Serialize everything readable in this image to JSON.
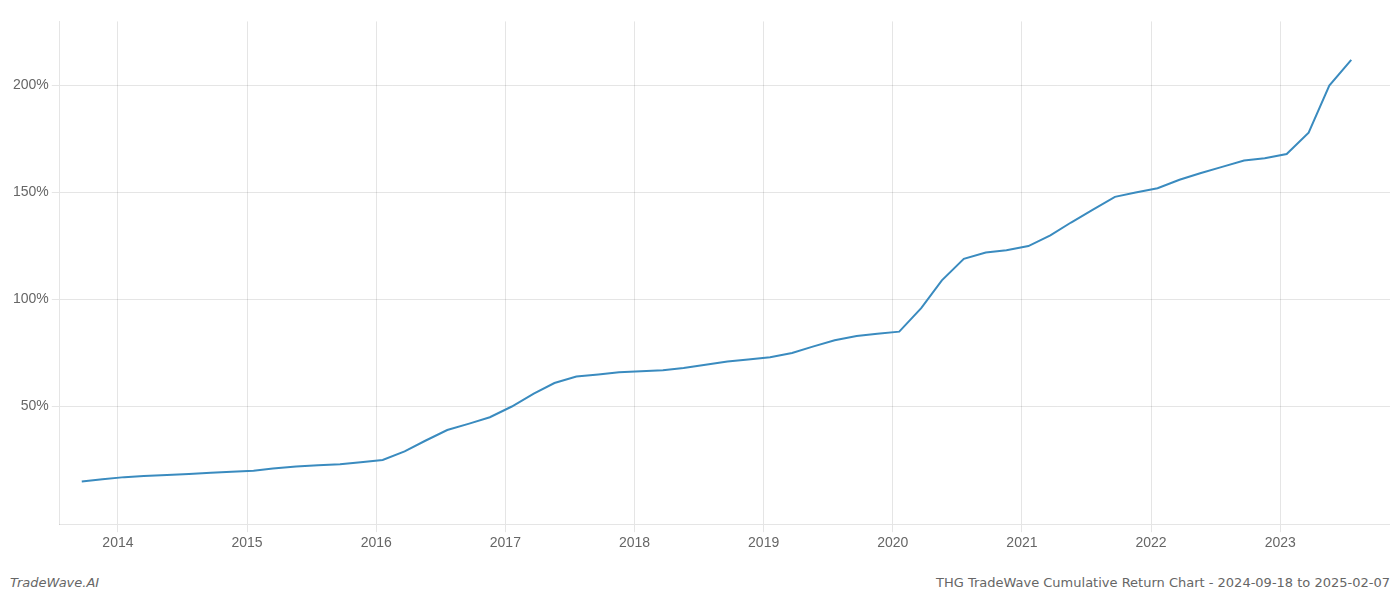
{
  "chart_data": {
    "type": "line",
    "title": "THG TradeWave Cumulative Return Chart - 2024-09-18 to 2025-02-07",
    "annotations": [
      "TradeWave.AI"
    ],
    "x": [
      2013.72,
      2013.88,
      2014.05,
      2014.2,
      2014.38,
      2014.55,
      2014.72,
      2014.88,
      2015.05,
      2015.2,
      2015.38,
      2015.55,
      2015.72,
      2015.88,
      2016.05,
      2016.22,
      2016.38,
      2016.55,
      2016.72,
      2016.88,
      2017.05,
      2017.22,
      2017.38,
      2017.55,
      2017.72,
      2017.88,
      2018.05,
      2018.22,
      2018.38,
      2018.55,
      2018.72,
      2018.88,
      2019.05,
      2019.22,
      2019.38,
      2019.55,
      2019.72,
      2019.88,
      2020.05,
      2020.22,
      2020.38,
      2020.55,
      2020.72,
      2020.88,
      2021.05,
      2021.22,
      2021.38,
      2021.55,
      2021.72,
      2021.88,
      2022.05,
      2022.22,
      2022.38,
      2022.55,
      2022.72,
      2022.88,
      2023.05,
      2023.22,
      2023.38,
      2023.55
    ],
    "values": [
      15,
      16,
      17,
      17.5,
      18,
      18.5,
      19,
      19.5,
      20,
      21,
      22,
      22.5,
      23,
      24,
      25,
      29,
      34,
      39,
      42,
      45,
      50,
      56,
      61,
      64,
      65,
      66,
      66.5,
      67,
      68,
      69.5,
      71,
      72,
      73,
      75,
      78,
      81,
      83,
      84,
      85,
      96,
      109,
      119,
      122,
      123,
      125,
      130,
      136,
      142,
      148,
      150,
      152,
      156,
      159,
      162,
      165,
      166,
      168,
      178,
      200,
      212
    ],
    "color": "#3a8bbf",
    "xlim": [
      2013.55,
      2023.85
    ],
    "xticks": [
      2014,
      2015,
      2016,
      2017,
      2018,
      2019,
      2020,
      2021,
      2022,
      2023
    ],
    "ylim": [
      -5,
      230
    ],
    "yticks": [
      {
        "value": 50,
        "label": "50%"
      },
      {
        "value": 100,
        "label": "100%"
      },
      {
        "value": 150,
        "label": "150%"
      },
      {
        "value": 200,
        "label": "200%"
      }
    ],
    "grid": true
  }
}
